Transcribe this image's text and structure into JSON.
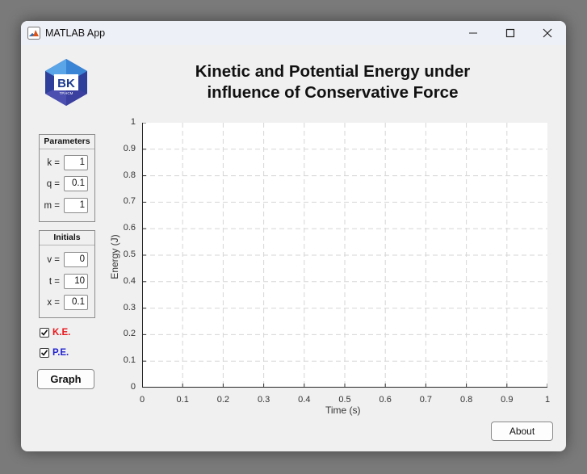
{
  "window": {
    "title": "MATLAB App"
  },
  "heading": {
    "line1": "Kinetic and Potential Energy under",
    "line2": "influence of Conservative Force"
  },
  "logo": {
    "text": "BK",
    "subtext": "TP.HCM"
  },
  "parameters": {
    "title": "Parameters",
    "fields": [
      {
        "label": "k =",
        "value": "1"
      },
      {
        "label": "q =",
        "value": "0.1"
      },
      {
        "label": "m =",
        "value": "1"
      }
    ]
  },
  "initials": {
    "title": "Initials",
    "fields": [
      {
        "label": "v =",
        "value": "0"
      },
      {
        "label": "t =",
        "value": "10"
      },
      {
        "label": "x =",
        "value": "0.1"
      }
    ]
  },
  "checkboxes": [
    {
      "label": "K.E.",
      "checked": true,
      "color": "#e8161b"
    },
    {
      "label": "P.E.",
      "checked": true,
      "color": "#1f1fd0"
    }
  ],
  "buttons": {
    "graph": "Graph",
    "about": "About"
  },
  "chart_data": {
    "type": "line",
    "series": [],
    "xlabel": "Time (s)",
    "ylabel": "Energy (J)",
    "xlim": [
      0,
      1
    ],
    "ylim": [
      0,
      1
    ],
    "xticks": [
      "0",
      "0.1",
      "0.2",
      "0.3",
      "0.4",
      "0.5",
      "0.6",
      "0.7",
      "0.8",
      "0.9",
      "1"
    ],
    "yticks": [
      "0",
      "0.1",
      "0.2",
      "0.3",
      "0.4",
      "0.5",
      "0.6",
      "0.7",
      "0.8",
      "0.9",
      "1"
    ],
    "grid": true
  }
}
